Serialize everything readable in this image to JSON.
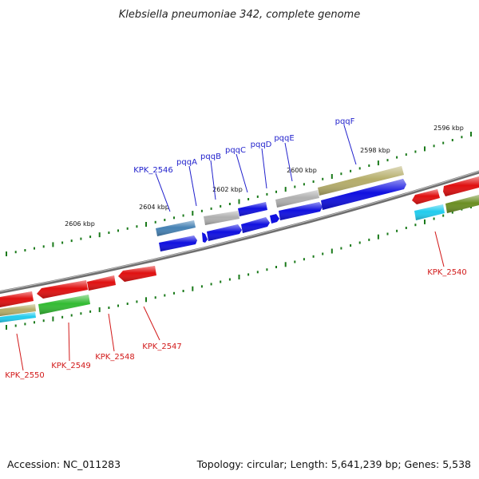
{
  "title": "Klebsiella pneumoniae 342, complete genome",
  "footer": {
    "accession": "Accession: NC_011283",
    "summary": "Topology: circular; Length: 5,641,239 bp; Genes: 5,538"
  },
  "ticks": [
    "2606 kbp",
    "2604 kbp",
    "2602 kbp",
    "2600 kbp",
    "2598 kbp",
    "2596 kbp"
  ],
  "forward_labels": [
    "KPK_2546",
    "pqqA",
    "pqqB",
    "pqqC",
    "pqqD",
    "pqqE",
    "pqqF"
  ],
  "reverse_labels": [
    "KPK_2550",
    "KPK_2549",
    "KPK_2548",
    "KPK_2547",
    "KPK_2540"
  ],
  "colors": {
    "backbone": "#7a7a7a",
    "tick_mark": "#1a7a1a",
    "forward_label": "#1f1fcc",
    "reverse_label": "#d21a1a",
    "cds_blue": "#1010e0",
    "cds_steel": "#4682b4",
    "cds_gray": "#b0b0b0",
    "cds_khaki": "#b5ad6a",
    "cds_red": "#e01010",
    "cds_green": "#33bb33",
    "cds_cyan": "#22ccee",
    "cds_olive": "#6b8e23"
  }
}
